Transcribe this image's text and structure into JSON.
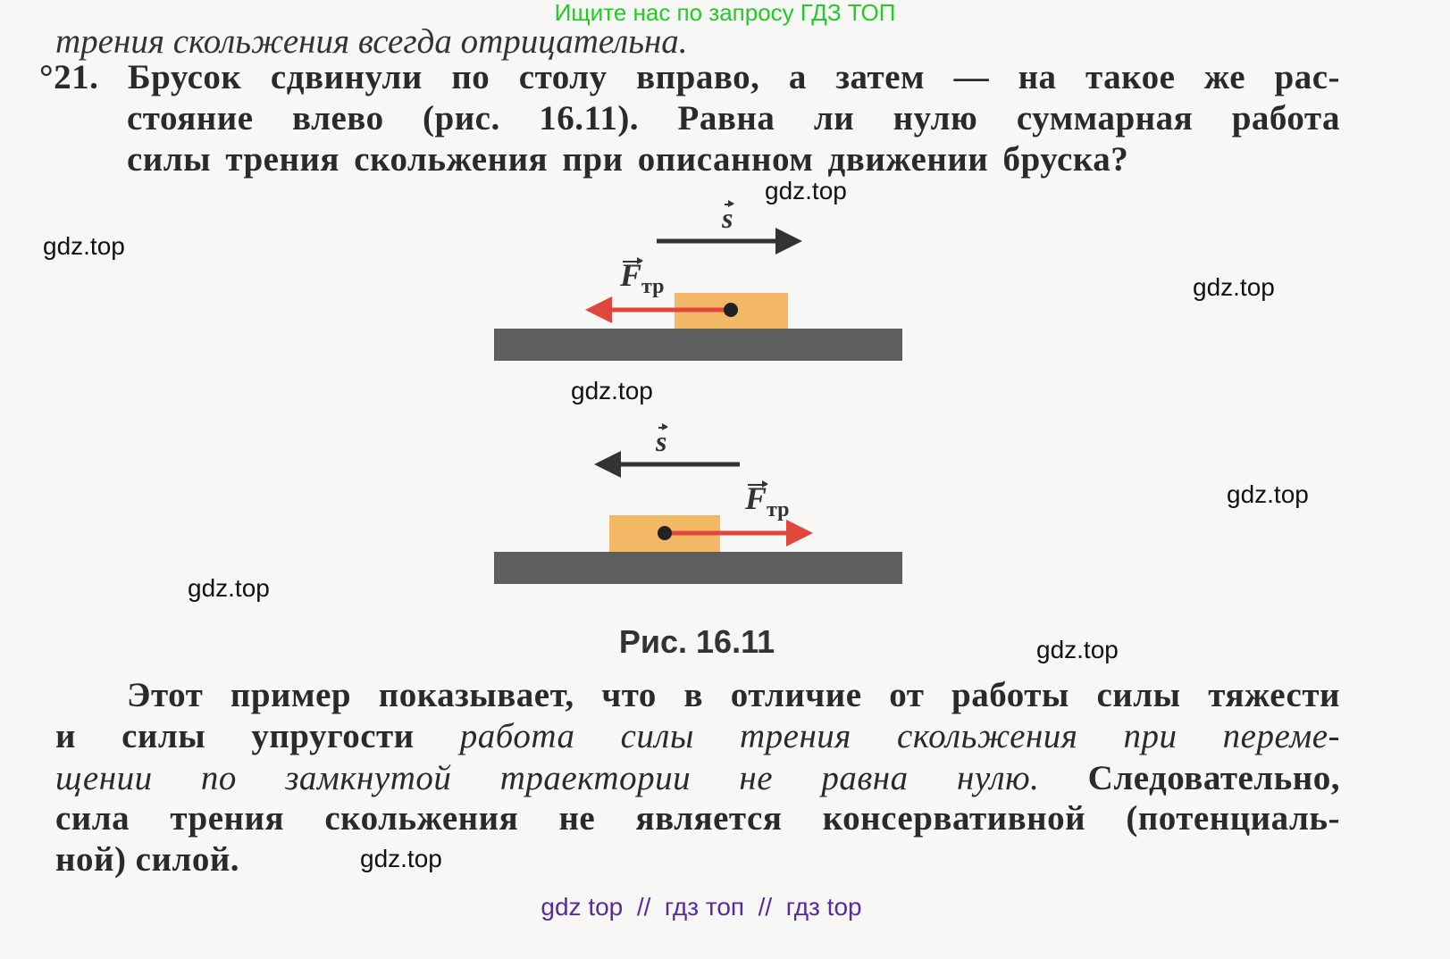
{
  "banner_top": "Ищите нас по запросу ГДЗ ТОП",
  "previous_line": "трения скольжения всегда отрицательна.",
  "problem": {
    "number": "°21.",
    "lines": [
      "Брусок сдвинули по столу вправо, а затем — на такое же рас-",
      "стояние влево (рис. 16.11). Равна ли нулю суммарная работа",
      "силы трения скольжения при описанном движении бруска?"
    ]
  },
  "figure": {
    "displacement_label": "s",
    "friction_label": "F",
    "friction_subscript": "тр",
    "caption": "Рис. 16.11",
    "colors": {
      "table": "#5e5e5e",
      "block": "#f2b866",
      "friction_arrow": "#e0463a",
      "displacement_arrow": "#333333"
    }
  },
  "paragraph": {
    "line1": "Этот пример показывает, что в отличие от работы силы тяжести",
    "line2_normal": "и силы упругости ",
    "line2_italic": "работа силы трения скольжения при переме-",
    "line3_italic": "щении по замкнутой траектории не равна нулю.",
    "line3_normal": " Следовательно,",
    "line4": "сила трения скольжения не является консервативной (потенциаль-",
    "line5": "ной) силой."
  },
  "watermarks": [
    "gdz.top",
    "gdz.top",
    "gdz.top",
    "gdz.top",
    "gdz.top",
    "gdz.top",
    "gdz.top",
    "gdz.top"
  ],
  "banner_bottom": "gdz top  //  гдз топ  //  гдз top"
}
